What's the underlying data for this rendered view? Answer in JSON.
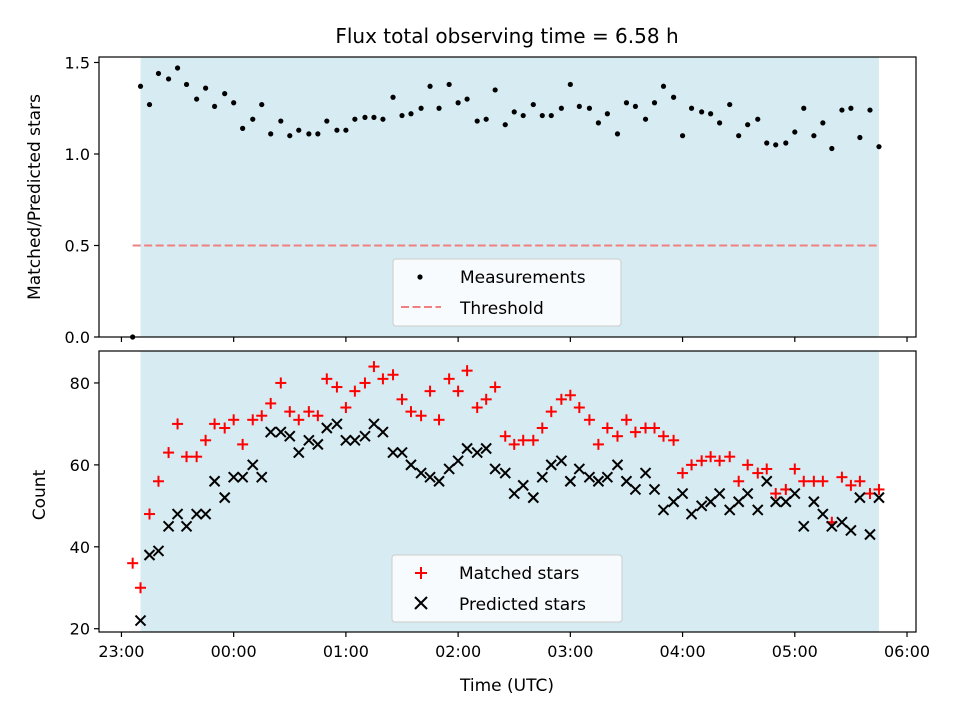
{
  "colors": {
    "band": "#add8e6",
    "measurement": "#000000",
    "threshold": "#f08080",
    "matched": "#ff0000",
    "predicted": "#000000"
  },
  "chart_data": {
    "type": "scatter",
    "title": "Flux total observing time = 6.58 h",
    "xlabel": "Time (UTC)",
    "xlim": [
      22.8,
      30.08
    ],
    "x_ticks": [
      23,
      24,
      25,
      26,
      27,
      28,
      29,
      30
    ],
    "x_tick_labels": [
      "23:00",
      "00:00",
      "01:00",
      "02:00",
      "03:00",
      "04:00",
      "05:00",
      "06:00"
    ],
    "observing_window": [
      23.17,
      29.75
    ],
    "top": {
      "ylabel": "Matched/Predicted stars",
      "ylim": [
        0,
        1.53
      ],
      "y_ticks": [
        0,
        0.5,
        1.0,
        1.5
      ],
      "y_tick_labels": [
        "0.0",
        "0.5",
        "1.0",
        "1.5"
      ],
      "threshold": 0.5,
      "threshold_range": [
        23.1,
        29.75
      ],
      "legend": {
        "measurements": "Measurements",
        "threshold": "Threshold"
      },
      "measurements": {
        "x": [
          23.1,
          23.17,
          23.25,
          23.33,
          23.42,
          23.5,
          23.58,
          23.67,
          23.75,
          23.83,
          23.92,
          24.0,
          24.08,
          24.17,
          24.25,
          24.33,
          24.42,
          24.5,
          24.58,
          24.67,
          24.75,
          24.83,
          24.92,
          25.0,
          25.08,
          25.17,
          25.25,
          25.33,
          25.42,
          25.5,
          25.58,
          25.67,
          25.75,
          25.83,
          25.92,
          26.0,
          26.08,
          26.17,
          26.25,
          26.33,
          26.42,
          26.5,
          26.58,
          26.67,
          26.75,
          26.83,
          26.92,
          27.0,
          27.08,
          27.17,
          27.25,
          27.33,
          27.42,
          27.5,
          27.58,
          27.67,
          27.75,
          27.83,
          27.92,
          28.0,
          28.08,
          28.17,
          28.25,
          28.33,
          28.42,
          28.5,
          28.58,
          28.67,
          28.75,
          28.83,
          28.92,
          29.0,
          29.08,
          29.17,
          29.25,
          29.33,
          29.42,
          29.5,
          29.58,
          29.67,
          29.75
        ],
        "y": [
          0.0,
          1.37,
          1.27,
          1.44,
          1.41,
          1.47,
          1.38,
          1.3,
          1.36,
          1.26,
          1.33,
          1.28,
          1.14,
          1.19,
          1.27,
          1.11,
          1.18,
          1.1,
          1.13,
          1.11,
          1.11,
          1.18,
          1.13,
          1.13,
          1.19,
          1.2,
          1.2,
          1.19,
          1.31,
          1.21,
          1.22,
          1.25,
          1.37,
          1.25,
          1.38,
          1.28,
          1.3,
          1.18,
          1.19,
          1.35,
          1.16,
          1.23,
          1.21,
          1.27,
          1.21,
          1.21,
          1.25,
          1.38,
          1.26,
          1.25,
          1.17,
          1.22,
          1.11,
          1.28,
          1.26,
          1.19,
          1.28,
          1.37,
          1.31,
          1.1,
          1.25,
          1.23,
          1.22,
          1.17,
          1.27,
          1.1,
          1.16,
          1.19,
          1.06,
          1.05,
          1.06,
          1.12,
          1.25,
          1.1,
          1.17,
          1.03,
          1.24,
          1.25,
          1.09,
          1.24,
          1.04
        ]
      }
    },
    "bottom": {
      "ylabel": "Count",
      "ylim": [
        19.2,
        87.8
      ],
      "y_ticks": [
        20,
        40,
        60,
        80
      ],
      "y_tick_labels": [
        "20",
        "40",
        "60",
        "80"
      ],
      "legend": {
        "matched": "Matched stars",
        "predicted": "Predicted stars"
      },
      "series": [
        {
          "name": "Matched stars",
          "x": [
            23.1,
            23.17,
            23.25,
            23.33,
            23.42,
            23.5,
            23.58,
            23.67,
            23.75,
            23.83,
            23.92,
            24.0,
            24.08,
            24.17,
            24.25,
            24.33,
            24.42,
            24.5,
            24.58,
            24.67,
            24.75,
            24.83,
            24.92,
            25.0,
            25.08,
            25.17,
            25.25,
            25.33,
            25.42,
            25.5,
            25.58,
            25.67,
            25.75,
            25.83,
            25.92,
            26.0,
            26.08,
            26.17,
            26.25,
            26.33,
            26.42,
            26.5,
            26.58,
            26.67,
            26.75,
            26.83,
            26.92,
            27.0,
            27.08,
            27.17,
            27.25,
            27.33,
            27.42,
            27.5,
            27.58,
            27.67,
            27.75,
            27.83,
            27.92,
            28.0,
            28.08,
            28.17,
            28.25,
            28.33,
            28.42,
            28.5,
            28.58,
            28.67,
            28.75,
            28.83,
            28.92,
            29.0,
            29.08,
            29.17,
            29.25,
            29.33,
            29.42,
            29.5,
            29.58,
            29.67,
            29.75
          ],
          "y": [
            36,
            30,
            48,
            56,
            63,
            70,
            62,
            62,
            66,
            70,
            69,
            71,
            65,
            71,
            72,
            75,
            80,
            73,
            71,
            73,
            72,
            81,
            79,
            74,
            78,
            80,
            84,
            81,
            82,
            76,
            73,
            72,
            78,
            71,
            81,
            78,
            83,
            74,
            76,
            79,
            67,
            65,
            66,
            66,
            69,
            73,
            76,
            77,
            74,
            71,
            65,
            69,
            67,
            71,
            68,
            69,
            69,
            67,
            66,
            58,
            60,
            61,
            62,
            61,
            62,
            56,
            60,
            58,
            59,
            53,
            54,
            59,
            56,
            56,
            56,
            46,
            57,
            55,
            56,
            53,
            54
          ]
        },
        {
          "name": "Predicted stars",
          "x": [
            23.17,
            23.25,
            23.33,
            23.42,
            23.5,
            23.58,
            23.67,
            23.75,
            23.83,
            23.92,
            24.0,
            24.08,
            24.17,
            24.25,
            24.33,
            24.42,
            24.5,
            24.58,
            24.67,
            24.75,
            24.83,
            24.92,
            25.0,
            25.08,
            25.17,
            25.25,
            25.33,
            25.42,
            25.5,
            25.58,
            25.67,
            25.75,
            25.83,
            25.92,
            26.0,
            26.08,
            26.17,
            26.25,
            26.33,
            26.42,
            26.5,
            26.58,
            26.67,
            26.75,
            26.83,
            26.92,
            27.0,
            27.08,
            27.17,
            27.25,
            27.33,
            27.42,
            27.5,
            27.58,
            27.67,
            27.75,
            27.83,
            27.92,
            28.0,
            28.08,
            28.17,
            28.25,
            28.33,
            28.42,
            28.5,
            28.58,
            28.67,
            28.75,
            28.83,
            28.92,
            29.0,
            29.08,
            29.17,
            29.25,
            29.33,
            29.42,
            29.5,
            29.58,
            29.67,
            29.75
          ],
          "y": [
            22,
            38,
            39,
            45,
            48,
            45,
            48,
            48,
            56,
            52,
            57,
            57,
            60,
            57,
            68,
            68,
            67,
            63,
            66,
            65,
            69,
            70,
            66,
            66,
            67,
            70,
            68,
            63,
            63,
            60,
            58,
            57,
            56,
            59,
            61,
            64,
            63,
            64,
            59,
            58,
            53,
            55,
            52,
            57,
            60,
            61,
            56,
            59,
            57,
            56,
            57,
            60,
            56,
            54,
            58,
            54,
            49,
            51,
            53,
            48,
            50,
            51,
            53,
            49,
            51,
            53,
            49,
            56,
            51,
            51,
            53,
            45,
            51,
            48,
            45,
            46,
            44,
            52,
            43,
            52
          ]
        }
      ]
    }
  }
}
